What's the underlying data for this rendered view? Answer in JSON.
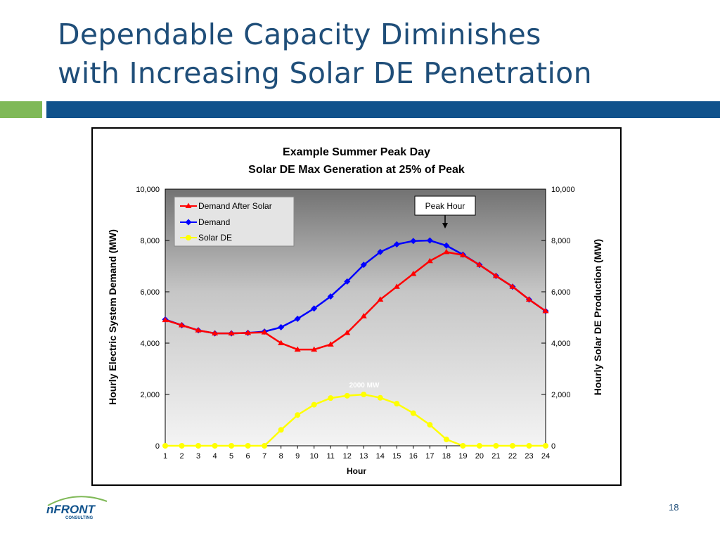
{
  "slide": {
    "title_line1": "Dependable Capacity Diminishes",
    "title_line2": "with Increasing Solar DE Penetration",
    "page_number": "18",
    "logo_text": "nFRONT",
    "logo_subtext": "CONSULTING",
    "colors": {
      "title": "#1f4e79",
      "accent_green": "#7fb957",
      "accent_blue": "#10528c"
    }
  },
  "chart_data": {
    "type": "line",
    "title": "Example Summer Peak Day",
    "subtitle": "Solar DE Max Generation at 25% of Peak",
    "xlabel": "Hour",
    "ylabel": "Hourly Electric System Demand (MW)",
    "y2label": "Hourly Solar DE Production (MW)",
    "x": [
      1,
      2,
      3,
      4,
      5,
      6,
      7,
      8,
      9,
      10,
      11,
      12,
      13,
      14,
      15,
      16,
      17,
      18,
      19,
      20,
      21,
      22,
      23,
      24
    ],
    "ylim": [
      0,
      10000
    ],
    "y2lim": [
      0,
      10000
    ],
    "yticks": [
      "0",
      "2,000",
      "4,000",
      "6,000",
      "8,000",
      "10,000"
    ],
    "y2ticks": [
      "0",
      "2,000",
      "4,000",
      "6,000",
      "8,000",
      "10,000"
    ],
    "legend_position": "top-left",
    "series": [
      {
        "name": "Demand After Solar",
        "color": "#ff0000",
        "marker": "triangle",
        "values": [
          4900,
          4700,
          4500,
          4380,
          4380,
          4400,
          4420,
          4000,
          3750,
          3750,
          3950,
          4400,
          5050,
          5700,
          6200,
          6700,
          7200,
          7550,
          7430,
          7050,
          6620,
          6200,
          5700,
          5250
        ]
      },
      {
        "name": "Demand",
        "color": "#0000ff",
        "marker": "diamond",
        "values": [
          4920,
          4700,
          4500,
          4380,
          4380,
          4400,
          4450,
          4620,
          4950,
          5350,
          5820,
          6400,
          7050,
          7550,
          7850,
          7980,
          8000,
          7800,
          7450,
          7050,
          6620,
          6200,
          5700,
          5250
        ]
      },
      {
        "name": "Solar DE",
        "color": "#ffff00",
        "marker": "circle",
        "values": [
          0,
          0,
          0,
          0,
          0,
          0,
          0,
          620,
          1200,
          1600,
          1860,
          1950,
          2000,
          1870,
          1640,
          1270,
          820,
          250,
          0,
          0,
          0,
          0,
          0,
          0
        ]
      }
    ],
    "annotations": [
      {
        "text": "Peak Hour",
        "x": 18
      },
      {
        "text": "2000 MW",
        "x": 13
      }
    ],
    "grid": false
  }
}
